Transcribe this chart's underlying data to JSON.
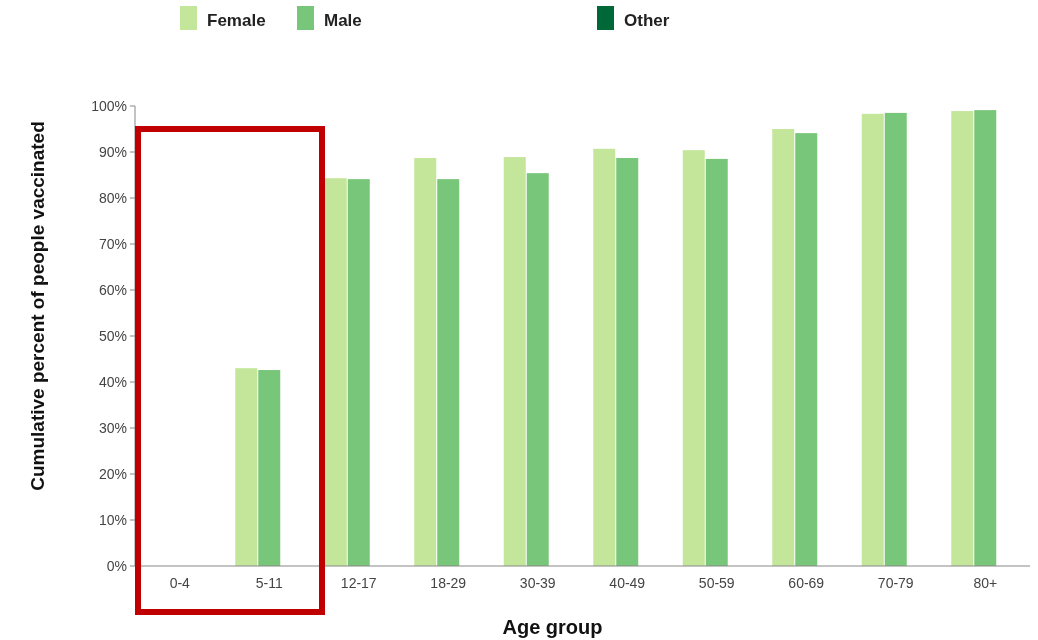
{
  "chart_data": {
    "type": "bar",
    "xlabel": "Age group",
    "ylabel": "Cumulative percent of people vaccinated",
    "categories": [
      "0-4",
      "5-11",
      "12-17",
      "18-29",
      "30-39",
      "40-49",
      "50-59",
      "60-69",
      "70-79",
      "80+"
    ],
    "series": [
      {
        "name": "Female",
        "color": "#c3e69a",
        "values": [
          null,
          43.0,
          84.3,
          88.7,
          88.9,
          90.7,
          90.4,
          95.0,
          98.3,
          98.9
        ]
      },
      {
        "name": "Male",
        "color": "#78c679",
        "values": [
          null,
          42.6,
          84.1,
          84.1,
          85.4,
          88.7,
          88.5,
          94.1,
          98.5,
          99.1
        ]
      },
      {
        "name": "Other",
        "color": "#006838",
        "values": [
          null,
          null,
          null,
          null,
          null,
          null,
          null,
          null,
          null,
          null
        ]
      }
    ],
    "ylim": [
      0,
      100
    ],
    "yticks": [
      {
        "value": 0,
        "label": "0%"
      },
      {
        "value": 10,
        "label": "10%"
      },
      {
        "value": 20,
        "label": "20%"
      },
      {
        "value": 30,
        "label": "30%"
      },
      {
        "value": 40,
        "label": "40%"
      },
      {
        "value": 50,
        "label": "50%"
      },
      {
        "value": 60,
        "label": "60%"
      },
      {
        "value": 70,
        "label": "70%"
      },
      {
        "value": 80,
        "label": "80%"
      },
      {
        "value": 90,
        "label": "90%"
      },
      {
        "value": 100,
        "label": "100%"
      }
    ],
    "grid": false,
    "legend": "top"
  }
}
